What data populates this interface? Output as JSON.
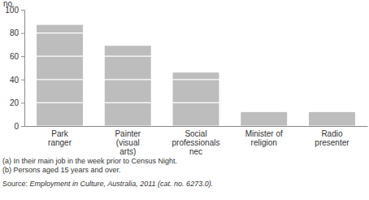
{
  "chart_data": {
    "type": "bar",
    "categories": [
      "Park ranger",
      "Painter (visual arts)",
      "Social professionals nec",
      "Minister of religion",
      "Radio presenter"
    ],
    "values": [
      87,
      69,
      46,
      12,
      12
    ],
    "color": "#bdbdbd",
    "ylim": [
      0,
      100
    ],
    "yticks": [
      0,
      20,
      40,
      60,
      80,
      100
    ],
    "grid": true,
    "y_label": "no.",
    "notes": [
      "(a) In their main job in the week prior to Census Night.",
      "(b) Persons aged 15 years and over."
    ],
    "source": "Source: Employment in Culture, Australia, 2011 (cat. no. 6273.0)."
  }
}
